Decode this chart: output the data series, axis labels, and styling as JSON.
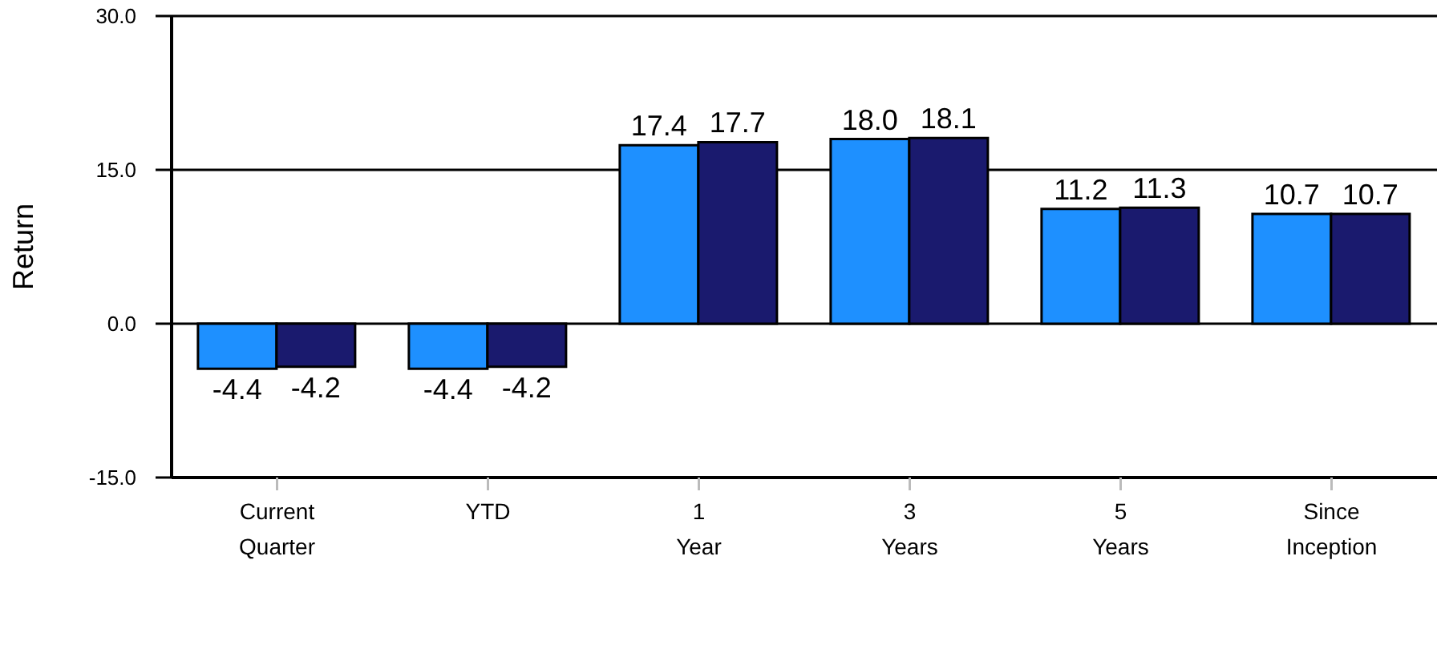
{
  "chart_data": {
    "type": "bar",
    "ylabel": "Return",
    "categories": [
      "Current Quarter",
      "YTD",
      "1 Year",
      "3 Years",
      "5 Years",
      "Since Inception"
    ],
    "series": [
      {
        "color": "#1e90ff",
        "values": [
          -4.4,
          -4.4,
          17.4,
          18.0,
          11.2,
          10.7
        ],
        "value_labels": [
          "-4.4",
          "-4.4",
          "17.4",
          "18.0",
          "11.2",
          "10.7"
        ]
      },
      {
        "color": "#1a1a6e",
        "values": [
          -4.2,
          -4.2,
          17.7,
          18.1,
          11.3,
          10.7
        ],
        "value_labels": [
          "-4.2",
          "-4.2",
          "17.7",
          "18.1",
          "11.3",
          "10.7"
        ]
      }
    ],
    "ylim": [
      -15,
      30
    ],
    "yticks": [
      {
        "value": -15,
        "label": "-15.0"
      },
      {
        "value": 0,
        "label": "0.0"
      },
      {
        "value": 15,
        "label": "15.0"
      },
      {
        "value": 30,
        "label": "30.0"
      }
    ],
    "grid": "y"
  }
}
